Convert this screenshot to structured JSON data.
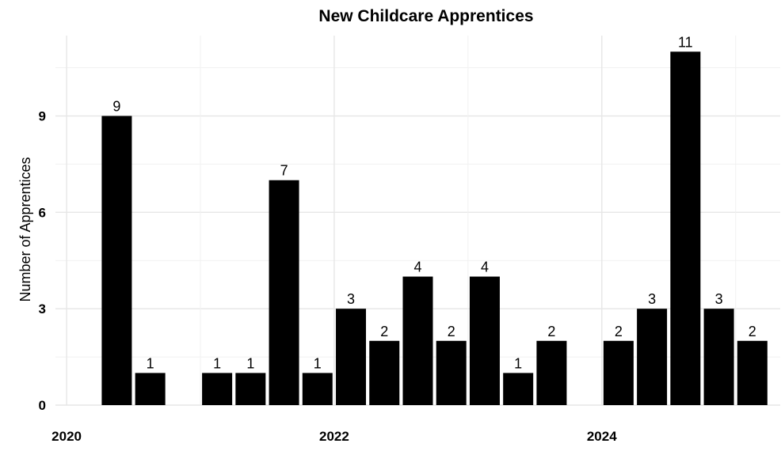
{
  "chart_data": {
    "type": "bar",
    "title": "New Childcare Apprentices",
    "xlabel": "",
    "ylabel": "Number of Apprentices",
    "x_unit": "quarter",
    "bars": [
      {
        "x": "2020-04-01",
        "value": 9
      },
      {
        "x": "2020-07-01",
        "value": 1
      },
      {
        "x": "2021-01-01",
        "value": 1
      },
      {
        "x": "2021-04-01",
        "value": 1
      },
      {
        "x": "2021-07-01",
        "value": 7
      },
      {
        "x": "2021-10-01",
        "value": 1
      },
      {
        "x": "2022-01-01",
        "value": 3
      },
      {
        "x": "2022-04-01",
        "value": 2
      },
      {
        "x": "2022-07-01",
        "value": 4
      },
      {
        "x": "2022-10-01",
        "value": 2
      },
      {
        "x": "2023-01-01",
        "value": 4
      },
      {
        "x": "2023-04-01",
        "value": 1
      },
      {
        "x": "2023-07-01",
        "value": 2
      },
      {
        "x": "2024-01-01",
        "value": 2
      },
      {
        "x": "2024-04-01",
        "value": 3
      },
      {
        "x": "2024-07-01",
        "value": 11
      },
      {
        "x": "2024-10-01",
        "value": 3
      },
      {
        "x": "2025-01-01",
        "value": 2
      }
    ],
    "x_ticks": [
      "2020",
      "2022",
      "2024"
    ],
    "y_ticks": [
      0,
      3,
      6,
      9
    ],
    "ylim": [
      0,
      11.5
    ],
    "xlim": [
      "2019-12",
      "2025-05"
    ],
    "grid": true,
    "legend": "none",
    "bar_color": "#000000"
  }
}
